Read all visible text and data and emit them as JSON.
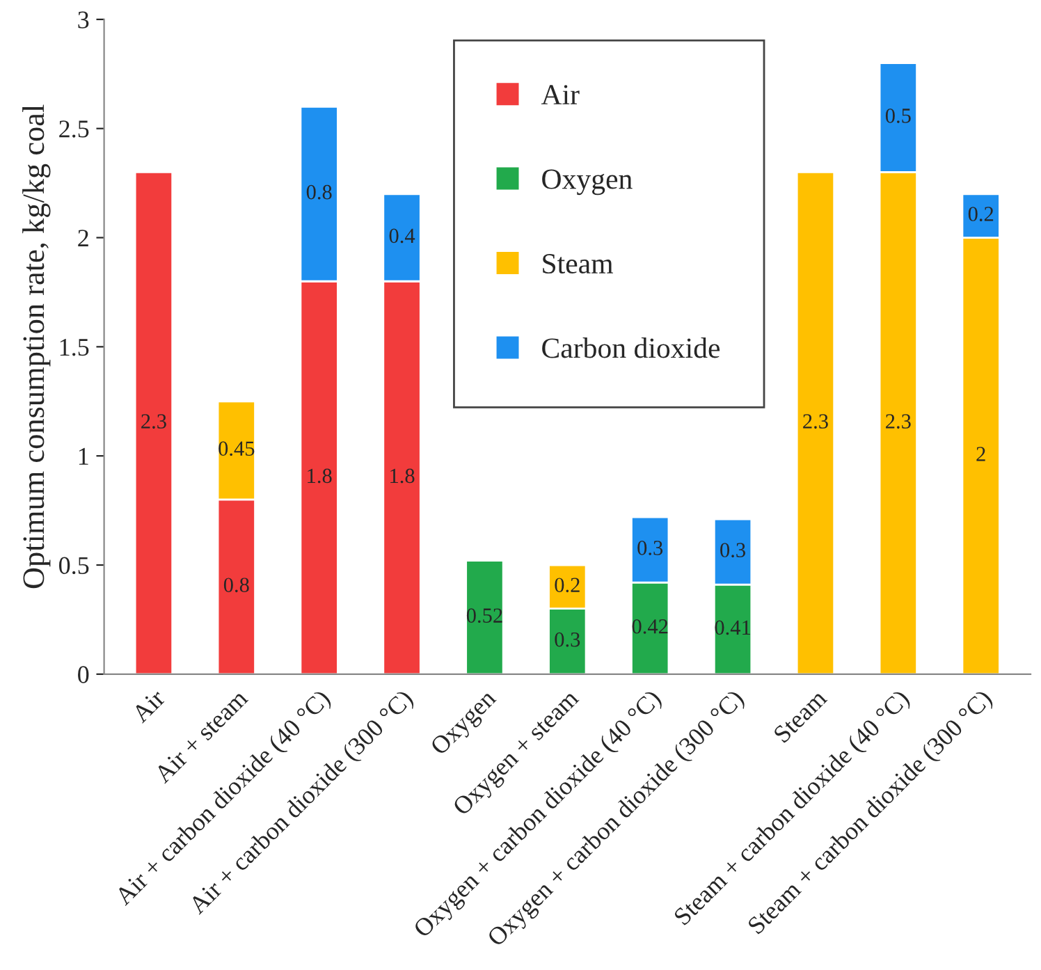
{
  "chart_data": {
    "type": "bar",
    "stacked": true,
    "ylabel": "Optimum consumption rate, kg/kg coal",
    "categories": [
      "Air",
      "Air + steam",
      "Air + carbon dioxide (40 °C)",
      "Air + carbon dioxide (300 °C)",
      "Oxygen",
      "Oxygen + steam",
      "Oxygen + carbon dioxide (40 °C)",
      "Oxygen + carbon dioxide (300 °C)",
      "Steam",
      "Steam + carbon dioxide (40 °C)",
      "Steam + carbon dioxide (300 °C)"
    ],
    "series": [
      {
        "name": "Air",
        "color": "#f23c3c",
        "values": [
          2.3,
          0.8,
          1.8,
          1.8,
          null,
          null,
          null,
          null,
          null,
          null,
          null
        ]
      },
      {
        "name": "Oxygen",
        "color": "#22aa4c",
        "values": [
          null,
          null,
          null,
          null,
          0.52,
          0.3,
          0.42,
          0.41,
          null,
          null,
          null
        ]
      },
      {
        "name": "Steam",
        "color": "#ffc000",
        "values": [
          null,
          0.45,
          null,
          null,
          null,
          0.2,
          null,
          null,
          2.3,
          2.3,
          2
        ]
      },
      {
        "name": "Carbon dioxide",
        "color": "#1e90f0",
        "values": [
          null,
          null,
          0.8,
          0.4,
          null,
          null,
          0.3,
          0.3,
          null,
          0.5,
          0.2
        ]
      }
    ],
    "ylim": [
      0,
      3
    ],
    "yticks": [
      0,
      0.5,
      1,
      1.5,
      2,
      2.5,
      3
    ],
    "data_labels": true,
    "legend": "top",
    "grid": false
  }
}
